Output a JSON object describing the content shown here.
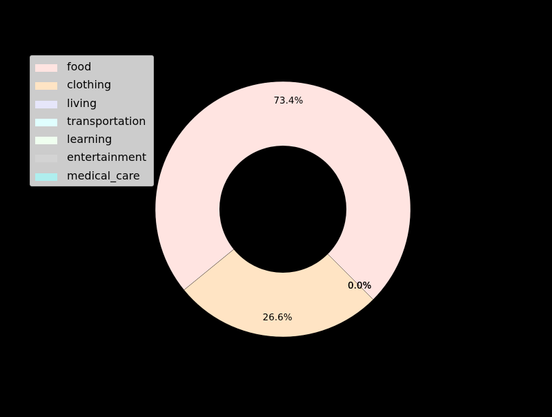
{
  "chart_data": {
    "type": "pie",
    "donut": true,
    "title": "",
    "legend_position": "upper-left",
    "categories": [
      "food",
      "clothing",
      "living",
      "transportation",
      "learning",
      "entertainment",
      "medical_care"
    ],
    "values": [
      73.4,
      26.6,
      0.0,
      0.0,
      0.0,
      0.0,
      0.0
    ],
    "value_labels": [
      "73.4%",
      "26.6%",
      "0.0%",
      "0.0%",
      "0.0%",
      "0.0%",
      "0.0%"
    ],
    "colors": [
      "#ffe4e1",
      "#ffe4c4",
      "#e6e6fa",
      "#e0ffff",
      "#f0fff0",
      "#d3d3d3",
      "#afeeee"
    ],
    "background": "#000000",
    "legend_background": "#cccccc"
  }
}
